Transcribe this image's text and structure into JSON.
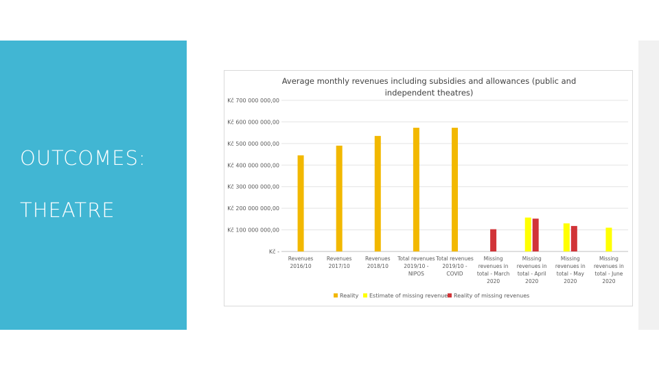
{
  "slide": {
    "heading_line1": "OUTCOMES:",
    "heading_line2": "THEATRE",
    "accent_color": "#41b6d3"
  },
  "chart_data": {
    "type": "bar",
    "title": "Average monthly revenues including subsidies and allowances (public and independent theatres)",
    "xlabel": "",
    "ylabel": "",
    "ylim": [
      0,
      700000000
    ],
    "y_ticks": [
      {
        "value": 0,
        "label": "Kč -"
      },
      {
        "value": 100000000,
        "label": "Kč 100 000 000,00"
      },
      {
        "value": 200000000,
        "label": "Kč 200 000 000,00"
      },
      {
        "value": 300000000,
        "label": "Kč 300 000 000,00"
      },
      {
        "value": 400000000,
        "label": "Kč 400 000 000,00"
      },
      {
        "value": 500000000,
        "label": "Kč 500 000 000,00"
      },
      {
        "value": 600000000,
        "label": "Kč 600 000 000,00"
      },
      {
        "value": 700000000,
        "label": "Kč 700 000 000,00"
      }
    ],
    "grid": true,
    "legend_position": "bottom",
    "categories": [
      [
        "Revenues",
        "2016/10"
      ],
      [
        "Revenues",
        "2017/10"
      ],
      [
        "Revenues",
        "2018/10"
      ],
      [
        "Total revenues",
        "2019/10 -",
        "NIPOS"
      ],
      [
        "Total revenues",
        "2019/10 -",
        "COVID"
      ],
      [
        "Missing",
        "revenues in",
        "total - March",
        "2020"
      ],
      [
        "Missing",
        "revenues in",
        "total - April",
        "2020"
      ],
      [
        "Missing",
        "revenues in",
        "total - May",
        "2020"
      ],
      [
        "Missing",
        "revenues in",
        "total - June",
        "2020"
      ]
    ],
    "series": [
      {
        "name": "Reality",
        "color": "#f2b800",
        "values": [
          445000000,
          490000000,
          535000000,
          573000000,
          573000000,
          null,
          null,
          null,
          null
        ]
      },
      {
        "name": "Estimate of missing revenues",
        "color": "#ffff00",
        "values": [
          null,
          null,
          null,
          null,
          null,
          null,
          157000000,
          130000000,
          110000000
        ]
      },
      {
        "name": "Reality of missing revenues",
        "color": "#d13438",
        "values": [
          null,
          null,
          null,
          null,
          null,
          103000000,
          152000000,
          118000000,
          null
        ]
      }
    ]
  }
}
